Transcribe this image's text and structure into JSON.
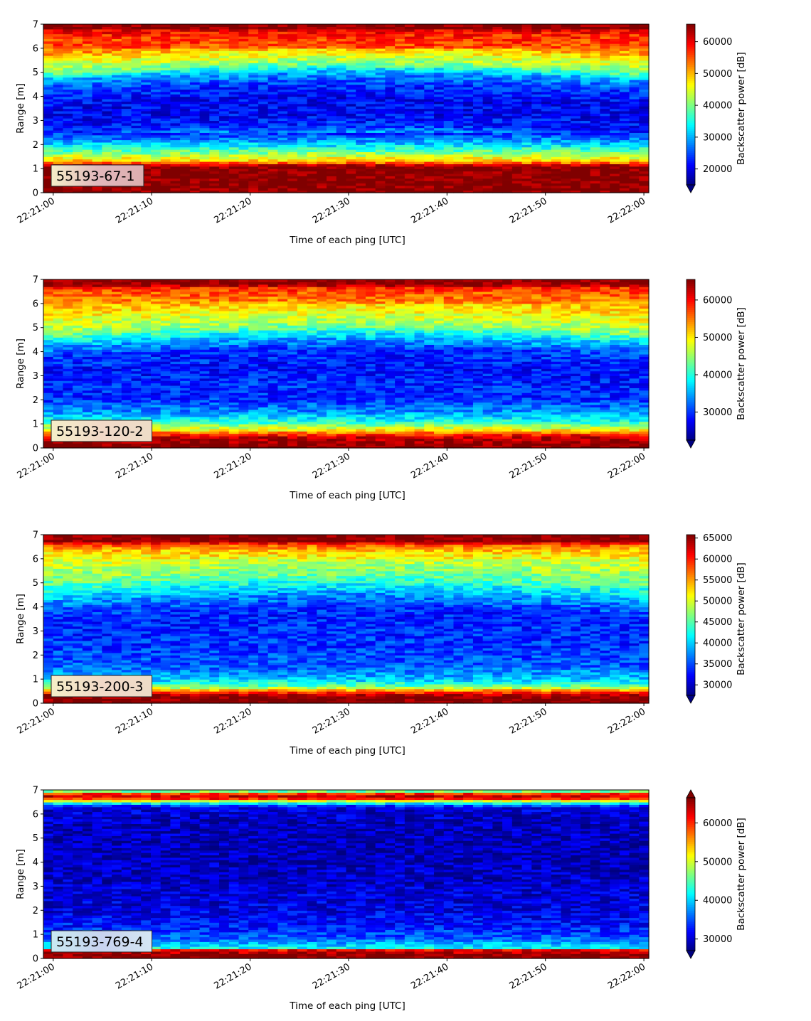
{
  "chart_data": [
    {
      "type": "heatmap",
      "annotation": "55193-67-1",
      "xlabel": "Time of each ping [UTC]",
      "ylabel": "Range [m]",
      "x_ticks": [
        "22:21:00",
        "22:21:10",
        "22:21:20",
        "22:21:30",
        "22:21:40",
        "22:21:50",
        "22:22:00"
      ],
      "xlim": [
        "22:20:59",
        "22:22:00.5"
      ],
      "y_ticks": [
        0,
        1,
        2,
        3,
        4,
        5,
        6,
        7
      ],
      "ylim": [
        0,
        7
      ],
      "colorbar": {
        "label": "Backscatter power [dB]",
        "ticks": [
          20000,
          30000,
          40000,
          50000,
          60000
        ],
        "range": [
          15000,
          65500
        ],
        "extend": "min"
      },
      "colormap": "jet",
      "range_profile": [
        {
          "r": 0.0,
          "v": 65500
        },
        {
          "r": 0.25,
          "v": 65500
        },
        {
          "r": 1.1,
          "v": 65500
        },
        {
          "r": 1.3,
          "v": 50000
        },
        {
          "r": 1.6,
          "v": 42000
        },
        {
          "r": 2.0,
          "v": 32000
        },
        {
          "r": 2.5,
          "v": 23000
        },
        {
          "r": 3.0,
          "v": 21000
        },
        {
          "r": 3.6,
          "v": 21000
        },
        {
          "r": 4.2,
          "v": 24000
        },
        {
          "r": 4.7,
          "v": 30000
        },
        {
          "r": 5.0,
          "v": 40000
        },
        {
          "r": 5.5,
          "v": 47000
        },
        {
          "r": 6.0,
          "v": 55000
        },
        {
          "r": 6.5,
          "v": 57000
        },
        {
          "r": 6.75,
          "v": 60000
        },
        {
          "r": 6.85,
          "v": 65500
        },
        {
          "r": 7.0,
          "v": 65500
        }
      ]
    },
    {
      "type": "heatmap",
      "annotation": "55193-120-2",
      "xlabel": "Time of each ping [UTC]",
      "ylabel": "Range [m]",
      "x_ticks": [
        "22:21:00",
        "22:21:10",
        "22:21:20",
        "22:21:30",
        "22:21:40",
        "22:21:50",
        "22:22:00"
      ],
      "xlim": [
        "22:20:59",
        "22:22:00.5"
      ],
      "y_ticks": [
        0,
        1,
        2,
        3,
        4,
        5,
        6,
        7
      ],
      "ylim": [
        0,
        7
      ],
      "colorbar": {
        "label": "Backscatter power [dB]",
        "ticks": [
          30000,
          40000,
          50000,
          60000
        ],
        "range": [
          22500,
          65500
        ],
        "extend": "min"
      },
      "colormap": "jet",
      "range_profile": [
        {
          "r": 0.0,
          "v": 65500
        },
        {
          "r": 0.15,
          "v": 65500
        },
        {
          "r": 0.5,
          "v": 62000
        },
        {
          "r": 0.75,
          "v": 50000
        },
        {
          "r": 1.1,
          "v": 40000
        },
        {
          "r": 1.5,
          "v": 34000
        },
        {
          "r": 2.0,
          "v": 30000
        },
        {
          "r": 3.0,
          "v": 28500
        },
        {
          "r": 3.8,
          "v": 30000
        },
        {
          "r": 4.3,
          "v": 36000
        },
        {
          "r": 4.8,
          "v": 45000
        },
        {
          "r": 5.5,
          "v": 50000
        },
        {
          "r": 6.2,
          "v": 55000
        },
        {
          "r": 6.65,
          "v": 58000
        },
        {
          "r": 6.8,
          "v": 65500
        },
        {
          "r": 7.0,
          "v": 65500
        }
      ]
    },
    {
      "type": "heatmap",
      "annotation": "55193-200-3",
      "xlabel": "Time of each ping [UTC]",
      "ylabel": "Range [m]",
      "x_ticks": [
        "22:21:00",
        "22:21:10",
        "22:21:20",
        "22:21:30",
        "22:21:40",
        "22:21:50",
        "22:22:00"
      ],
      "xlim": [
        "22:20:59",
        "22:22:00.5"
      ],
      "y_ticks": [
        0,
        1,
        2,
        3,
        4,
        5,
        6,
        7
      ],
      "ylim": [
        0,
        7
      ],
      "colorbar": {
        "label": "Backscatter power [dB]",
        "ticks": [
          30000,
          35000,
          40000,
          45000,
          50000,
          55000,
          60000,
          65000
        ],
        "range": [
          27500,
          65800
        ],
        "extend": "min"
      },
      "colormap": "jet",
      "range_profile": [
        {
          "r": 0.0,
          "v": 65800
        },
        {
          "r": 0.3,
          "v": 65800
        },
        {
          "r": 0.5,
          "v": 58000
        },
        {
          "r": 0.7,
          "v": 46000
        },
        {
          "r": 1.0,
          "v": 40000
        },
        {
          "r": 1.5,
          "v": 36000
        },
        {
          "r": 2.5,
          "v": 34000
        },
        {
          "r": 3.5,
          "v": 33500
        },
        {
          "r": 4.2,
          "v": 38000
        },
        {
          "r": 5.0,
          "v": 46000
        },
        {
          "r": 5.8,
          "v": 50000
        },
        {
          "r": 6.3,
          "v": 53000
        },
        {
          "r": 6.6,
          "v": 58000
        },
        {
          "r": 6.75,
          "v": 65800
        },
        {
          "r": 7.0,
          "v": 65800
        }
      ]
    },
    {
      "type": "heatmap",
      "annotation": "55193-769-4",
      "xlabel": "Time of each ping [UTC]",
      "ylabel": "Range [m]",
      "x_ticks": [
        "22:21:00",
        "22:21:10",
        "22:21:20",
        "22:21:30",
        "22:21:40",
        "22:21:50",
        "22:22:00"
      ],
      "xlim": [
        "22:20:59",
        "22:22:00.5"
      ],
      "y_ticks": [
        0,
        1,
        2,
        3,
        4,
        5,
        6,
        7
      ],
      "ylim": [
        0,
        7
      ],
      "colorbar": {
        "label": "Backscatter power [dB]",
        "ticks": [
          30000,
          40000,
          50000,
          60000
        ],
        "range": [
          27000,
          66500
        ],
        "extend": "both"
      },
      "colormap": "jet",
      "range_profile": [
        {
          "r": 0.0,
          "v": 66500
        },
        {
          "r": 0.15,
          "v": 66500
        },
        {
          "r": 0.35,
          "v": 62000
        },
        {
          "r": 0.45,
          "v": 42000
        },
        {
          "r": 0.8,
          "v": 36000
        },
        {
          "r": 1.3,
          "v": 33000
        },
        {
          "r": 2.0,
          "v": 31000
        },
        {
          "r": 3.0,
          "v": 30000
        },
        {
          "r": 4.5,
          "v": 29000
        },
        {
          "r": 5.5,
          "v": 29500
        },
        {
          "r": 6.3,
          "v": 30500
        },
        {
          "r": 6.5,
          "v": 45000
        },
        {
          "r": 6.7,
          "v": 65000
        },
        {
          "r": 6.85,
          "v": 60000
        },
        {
          "r": 7.0,
          "v": 40000
        }
      ]
    }
  ]
}
